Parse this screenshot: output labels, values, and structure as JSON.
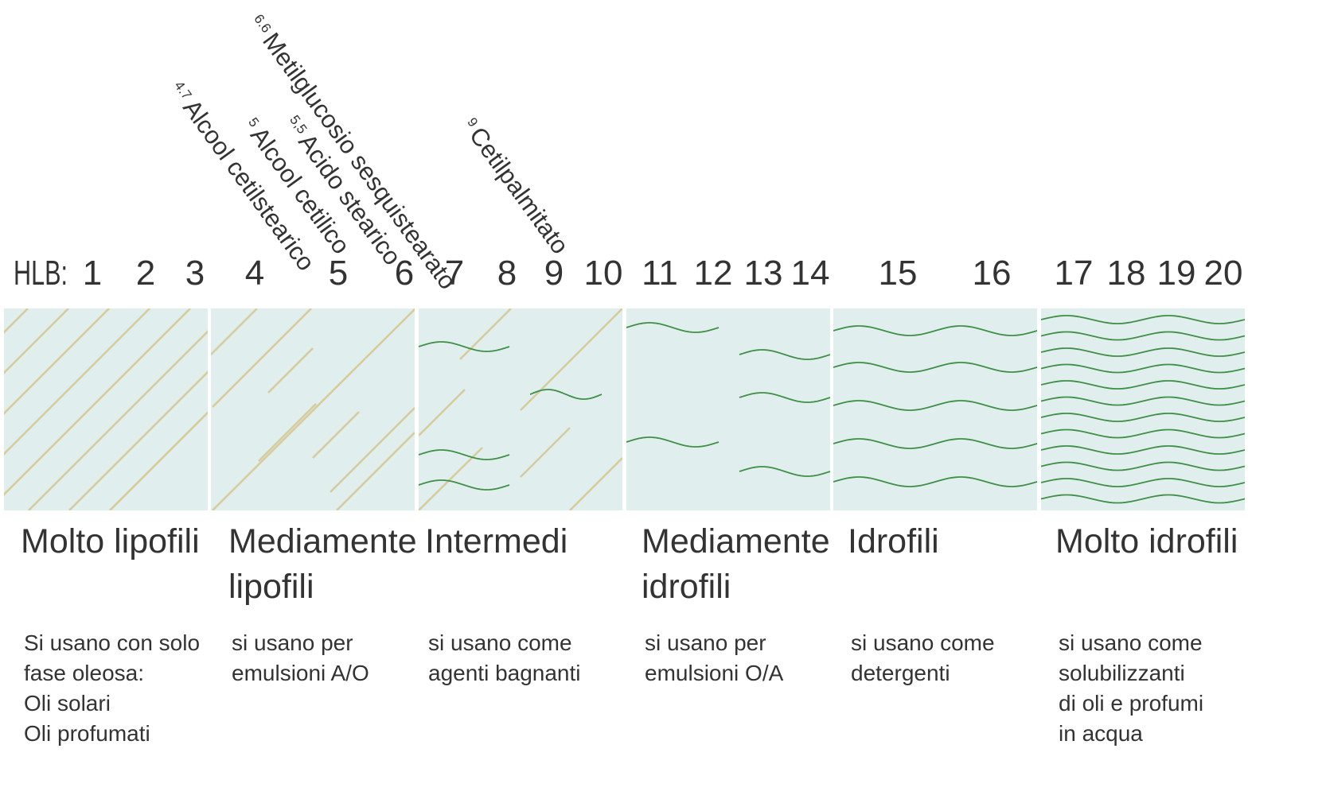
{
  "scale": {
    "prefix": "HLB:",
    "ticks": [
      "1",
      "2",
      "3",
      "4",
      "5",
      "6",
      "7",
      "8",
      "9",
      "10",
      "11",
      "12",
      "13",
      "14",
      "15",
      "16",
      "17",
      "18",
      "19",
      "20"
    ]
  },
  "substances": [
    {
      "value": "4.7",
      "name": "Alcool cetilstearico"
    },
    {
      "value": "5",
      "name": "Alcool cetilico"
    },
    {
      "value": "5,5",
      "name": "Acido stearico"
    },
    {
      "value": "6.6",
      "name": "Metilglucosio sesquistearato"
    },
    {
      "value": "9",
      "name": "Cetilpalmitato"
    }
  ],
  "categories": [
    {
      "title": [
        "Molto lipofili"
      ],
      "desc": [
        "Si usano con solo",
        "fase oleosa:",
        "Oli solari",
        "Oli profumati"
      ],
      "pattern": "diagonal-dense"
    },
    {
      "title": [
        "Mediamente",
        "lipofili"
      ],
      "desc": [
        "si usano per",
        "emulsioni A/O"
      ],
      "pattern": "diagonal-sparse"
    },
    {
      "title": [
        "Intermedi"
      ],
      "desc": [
        "si usano come",
        "agenti bagnanti"
      ],
      "pattern": "diagonal-and-waves"
    },
    {
      "title": [
        "Mediamente",
        "idrofili"
      ],
      "desc": [
        "si usano per",
        "emulsioni O/A"
      ],
      "pattern": "waves-sparse"
    },
    {
      "title": [
        "Idrofili"
      ],
      "desc": [
        "si usano come",
        "detergenti"
      ],
      "pattern": "waves-medium"
    },
    {
      "title": [
        "Molto idrofili"
      ],
      "desc": [
        "si usano come",
        "solubilizzanti",
        "di oli e profumi",
        "in acqua"
      ],
      "pattern": "waves-dense"
    }
  ],
  "colors": {
    "panel": "#e0eeee",
    "diagonal": "#d6cc9e",
    "wave": "#3f8f47",
    "text": "#333333"
  }
}
